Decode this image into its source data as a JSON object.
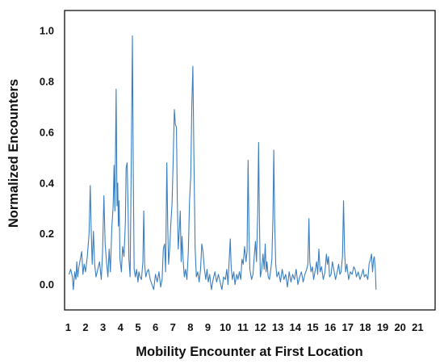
{
  "chart_data": {
    "type": "line",
    "title": "",
    "xlabel": "Mobility Encounter at First Location",
    "ylabel": "Normalized Encounters",
    "x_tick_labels": [
      "1",
      "2",
      "3",
      "4",
      "5",
      "6",
      "7",
      "8",
      "9",
      "10",
      "11",
      "12",
      "13",
      "14",
      "15",
      "16",
      "17",
      "18",
      "19",
      "20",
      "21"
    ],
    "y_tick_labels": [
      "0.0",
      "0.2",
      "0.4",
      "0.6",
      "0.8",
      "1.0"
    ],
    "xlim": [
      0.8,
      22.0
    ],
    "ylim": [
      -0.1,
      1.08
    ],
    "grid": false,
    "legend": false,
    "line_color": "#3a7ebf",
    "series": [
      {
        "values": [
          [
            1.05,
            0.04
          ],
          [
            1.15,
            0.06
          ],
          [
            1.25,
            0.03
          ],
          [
            1.3,
            -0.02
          ],
          [
            1.38,
            0.05
          ],
          [
            1.45,
            0.02
          ],
          [
            1.5,
            0.09
          ],
          [
            1.55,
            0.03
          ],
          [
            1.62,
            0.07
          ],
          [
            1.7,
            0.1
          ],
          [
            1.78,
            0.13
          ],
          [
            1.85,
            0.04
          ],
          [
            1.92,
            0.08
          ],
          [
            2.0,
            0.05
          ],
          [
            2.1,
            0.11
          ],
          [
            2.2,
            0.2
          ],
          [
            2.27,
            0.39
          ],
          [
            2.32,
            0.22
          ],
          [
            2.38,
            0.08
          ],
          [
            2.45,
            0.21
          ],
          [
            2.52,
            0.08
          ],
          [
            2.6,
            0.03
          ],
          [
            2.7,
            0.06
          ],
          [
            2.8,
            0.09
          ],
          [
            2.9,
            0.02
          ],
          [
            2.97,
            0.12
          ],
          [
            3.05,
            0.35
          ],
          [
            3.12,
            0.16
          ],
          [
            3.2,
            0.09
          ],
          [
            3.28,
            0.03
          ],
          [
            3.35,
            0.14
          ],
          [
            3.42,
            0.05
          ],
          [
            3.5,
            0.22
          ],
          [
            3.58,
            0.31
          ],
          [
            3.63,
            0.47
          ],
          [
            3.68,
            0.29
          ],
          [
            3.75,
            0.77
          ],
          [
            3.8,
            0.31
          ],
          [
            3.84,
            0.4
          ],
          [
            3.88,
            0.23
          ],
          [
            3.92,
            0.33
          ],
          [
            3.97,
            0.1
          ],
          [
            4.05,
            0.05
          ],
          [
            4.12,
            0.15
          ],
          [
            4.2,
            0.11
          ],
          [
            4.28,
            0.25
          ],
          [
            4.32,
            0.46
          ],
          [
            4.38,
            0.48
          ],
          [
            4.43,
            0.31
          ],
          [
            4.48,
            0.1
          ],
          [
            4.55,
            0.03
          ],
          [
            4.62,
            0.52
          ],
          [
            4.68,
            0.98
          ],
          [
            4.73,
            0.45
          ],
          [
            4.78,
            0.06
          ],
          [
            4.85,
            0.03
          ],
          [
            4.92,
            0.06
          ],
          [
            5.0,
            0.01
          ],
          [
            5.05,
            0.05
          ],
          [
            5.12,
            0.03
          ],
          [
            5.2,
            0.02
          ],
          [
            5.28,
            0.09
          ],
          [
            5.33,
            0.29
          ],
          [
            5.38,
            0.08
          ],
          [
            5.45,
            0.03
          ],
          [
            5.52,
            0.05
          ],
          [
            5.6,
            0.06
          ],
          [
            5.7,
            0.02
          ],
          [
            5.8,
            0.0
          ],
          [
            5.9,
            -0.02
          ],
          [
            6.0,
            0.04
          ],
          [
            6.1,
            0.01
          ],
          [
            6.2,
            0.05
          ],
          [
            6.3,
            -0.01
          ],
          [
            6.38,
            0.02
          ],
          [
            6.45,
            0.14
          ],
          [
            6.52,
            0.16
          ],
          [
            6.58,
            0.05
          ],
          [
            6.65,
            0.48
          ],
          [
            6.7,
            0.24
          ],
          [
            6.75,
            0.08
          ],
          [
            6.82,
            0.15
          ],
          [
            6.88,
            0.24
          ],
          [
            6.95,
            0.32
          ],
          [
            7.02,
            0.51
          ],
          [
            7.08,
            0.69
          ],
          [
            7.14,
            0.63
          ],
          [
            7.2,
            0.62
          ],
          [
            7.25,
            0.33
          ],
          [
            7.3,
            0.14
          ],
          [
            7.37,
            0.22
          ],
          [
            7.42,
            0.29
          ],
          [
            7.47,
            0.09
          ],
          [
            7.52,
            0.19
          ],
          [
            7.58,
            0.1
          ],
          [
            7.65,
            0.03
          ],
          [
            7.72,
            0.06
          ],
          [
            7.8,
            0.02
          ],
          [
            7.88,
            0.13
          ],
          [
            7.95,
            0.33
          ],
          [
            8.02,
            0.43
          ],
          [
            8.08,
            0.71
          ],
          [
            8.14,
            0.86
          ],
          [
            8.2,
            0.5
          ],
          [
            8.27,
            0.14
          ],
          [
            8.34,
            0.03
          ],
          [
            8.42,
            0.05
          ],
          [
            8.5,
            0.01
          ],
          [
            8.58,
            0.06
          ],
          [
            8.65,
            0.16
          ],
          [
            8.72,
            0.13
          ],
          [
            8.8,
            0.06
          ],
          [
            8.88,
            0.02
          ],
          [
            8.95,
            0.06
          ],
          [
            9.02,
            0.01
          ],
          [
            9.1,
            0.04
          ],
          [
            9.2,
            -0.02
          ],
          [
            9.3,
            0.02
          ],
          [
            9.4,
            0.05
          ],
          [
            9.5,
            0.01
          ],
          [
            9.6,
            0.04
          ],
          [
            9.7,
            0.01
          ],
          [
            9.8,
            -0.02
          ],
          [
            9.9,
            0.03
          ],
          [
            10.0,
            0.02
          ],
          [
            10.08,
            0.06
          ],
          [
            10.15,
            0.0
          ],
          [
            10.22,
            0.1
          ],
          [
            10.28,
            0.18
          ],
          [
            10.33,
            0.07
          ],
          [
            10.4,
            0.02
          ],
          [
            10.48,
            0.05
          ],
          [
            10.55,
            0.0
          ],
          [
            10.65,
            0.04
          ],
          [
            10.72,
            0.02
          ],
          [
            10.8,
            0.05
          ],
          [
            10.88,
            0.02
          ],
          [
            10.95,
            0.1
          ],
          [
            11.02,
            0.08
          ],
          [
            11.1,
            0.15
          ],
          [
            11.18,
            0.09
          ],
          [
            11.24,
            0.13
          ],
          [
            11.3,
            0.49
          ],
          [
            11.35,
            0.21
          ],
          [
            11.4,
            0.06
          ],
          [
            11.5,
            0.02
          ],
          [
            11.58,
            0.04
          ],
          [
            11.65,
            0.11
          ],
          [
            11.72,
            0.17
          ],
          [
            11.78,
            0.09
          ],
          [
            11.85,
            0.28
          ],
          [
            11.9,
            0.56
          ],
          [
            11.95,
            0.24
          ],
          [
            12.0,
            0.03
          ],
          [
            12.08,
            0.06
          ],
          [
            12.15,
            0.12
          ],
          [
            12.22,
            0.06
          ],
          [
            12.28,
            0.16
          ],
          [
            12.33,
            0.05
          ],
          [
            12.38,
            0.09
          ],
          [
            12.45,
            0.03
          ],
          [
            12.52,
            0.02
          ],
          [
            12.6,
            0.06
          ],
          [
            12.66,
            0.1
          ],
          [
            12.72,
            0.26
          ],
          [
            12.77,
            0.53
          ],
          [
            12.82,
            0.25
          ],
          [
            12.88,
            0.08
          ],
          [
            12.95,
            0.03
          ],
          [
            13.05,
            0.05
          ],
          [
            13.15,
            0.01
          ],
          [
            13.25,
            0.06
          ],
          [
            13.35,
            0.02
          ],
          [
            13.45,
            0.04
          ],
          [
            13.55,
            -0.01
          ],
          [
            13.65,
            0.05
          ],
          [
            13.75,
            0.01
          ],
          [
            13.85,
            0.04
          ],
          [
            13.95,
            0.02
          ],
          [
            14.05,
            0.06
          ],
          [
            14.15,
            0.0
          ],
          [
            14.25,
            0.03
          ],
          [
            14.35,
            0.05
          ],
          [
            14.45,
            0.01
          ],
          [
            14.55,
            0.04
          ],
          [
            14.65,
            0.06
          ],
          [
            14.72,
            0.08
          ],
          [
            14.78,
            0.26
          ],
          [
            14.83,
            0.09
          ],
          [
            14.9,
            0.05
          ],
          [
            14.98,
            0.07
          ],
          [
            15.05,
            0.02
          ],
          [
            15.15,
            0.06
          ],
          [
            15.22,
            0.09
          ],
          [
            15.28,
            0.04
          ],
          [
            15.35,
            0.14
          ],
          [
            15.42,
            0.05
          ],
          [
            15.5,
            0.07
          ],
          [
            15.6,
            0.02
          ],
          [
            15.7,
            0.05
          ],
          [
            15.78,
            0.12
          ],
          [
            15.84,
            0.08
          ],
          [
            15.9,
            0.11
          ],
          [
            15.96,
            0.03
          ],
          [
            16.05,
            0.04
          ],
          [
            16.12,
            0.09
          ],
          [
            16.2,
            0.06
          ],
          [
            16.3,
            0.02
          ],
          [
            16.4,
            0.05
          ],
          [
            16.48,
            0.08
          ],
          [
            16.55,
            0.04
          ],
          [
            16.62,
            0.05
          ],
          [
            16.7,
            0.11
          ],
          [
            16.76,
            0.33
          ],
          [
            16.82,
            0.13
          ],
          [
            16.88,
            0.05
          ],
          [
            16.95,
            0.08
          ],
          [
            17.05,
            0.02
          ],
          [
            17.15,
            0.05
          ],
          [
            17.25,
            0.04
          ],
          [
            17.35,
            0.07
          ],
          [
            17.42,
            0.06
          ],
          [
            17.5,
            0.03
          ],
          [
            17.6,
            0.05
          ],
          [
            17.7,
            0.02
          ],
          [
            17.8,
            0.04
          ],
          [
            17.88,
            0.06
          ],
          [
            17.95,
            0.03
          ],
          [
            18.05,
            0.04
          ],
          [
            18.15,
            0.02
          ],
          [
            18.22,
            0.08
          ],
          [
            18.3,
            0.1
          ],
          [
            18.36,
            0.12
          ],
          [
            18.42,
            0.05
          ],
          [
            18.48,
            0.1
          ],
          [
            18.52,
            0.11
          ],
          [
            18.58,
            0.06
          ],
          [
            18.62,
            -0.02
          ]
        ]
      }
    ]
  }
}
